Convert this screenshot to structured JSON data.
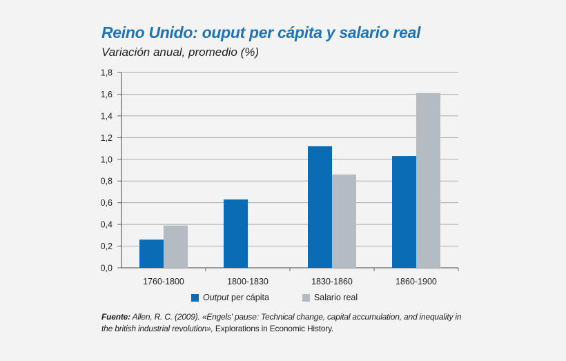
{
  "chart_data": {
    "type": "bar",
    "title": "Reino Unido: ouput per cápita y salario real",
    "subtitle": "Variación anual, promedio (%)",
    "categories": [
      "1760-1800",
      "1800-1830",
      "1830-1860",
      "1860-1900"
    ],
    "series": [
      {
        "name": "Output per cápita",
        "name_italic": "Output",
        "name_rest": " per cápita",
        "color": "#0a6cb5",
        "values": [
          0.26,
          0.63,
          1.12,
          1.03
        ]
      },
      {
        "name": "Salario real",
        "color": "#b2bcc2",
        "values": [
          0.39,
          null,
          0.86,
          1.61
        ]
      }
    ],
    "ylim": [
      0,
      1.8
    ],
    "yticks": [
      0.0,
      0.2,
      0.4,
      0.6,
      0.8,
      1.0,
      1.2,
      1.4,
      1.6,
      1.8
    ],
    "ytick_labels": [
      "0,0",
      "0,2",
      "0,4",
      "0,6",
      "0,8",
      "1,0",
      "1,2",
      "1,4",
      "1,6",
      "1,8"
    ],
    "grid": true,
    "legend": "bottom"
  },
  "source": {
    "label": "Fuente:",
    "text_italic": "Allen, R. C. (2009). «Engels' pause: Technical change, capital accumulation, and inequality in the british industrial revolution»,",
    "text_normal": "Explorations in Economic History."
  }
}
